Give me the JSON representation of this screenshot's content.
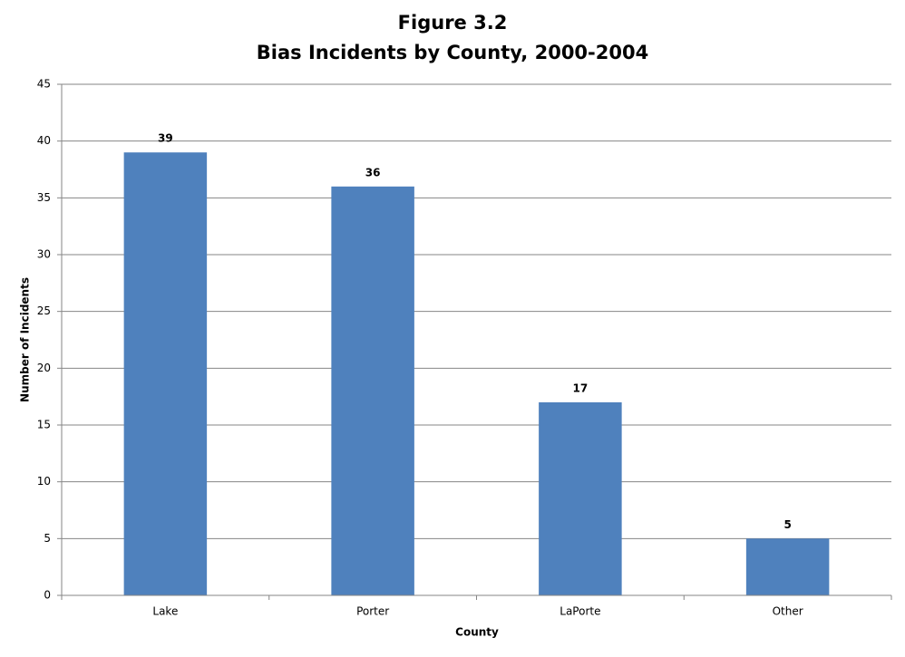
{
  "chart_data": {
    "type": "bar",
    "title": "Figure 3.2",
    "subtitle": "Bias Incidents by County, 2000-2004",
    "categories": [
      "Lake",
      "Porter",
      "LaPorte",
      "Other"
    ],
    "values": [
      39,
      36,
      17,
      5
    ],
    "color": "#4f81bd",
    "x_label": "County",
    "y_label": "Number of Incidents",
    "ylim": [
      0,
      45
    ],
    "yticks": [
      0,
      5,
      10,
      15,
      20,
      25,
      30,
      35,
      40,
      45
    ],
    "grid": true,
    "data_labels": true
  }
}
